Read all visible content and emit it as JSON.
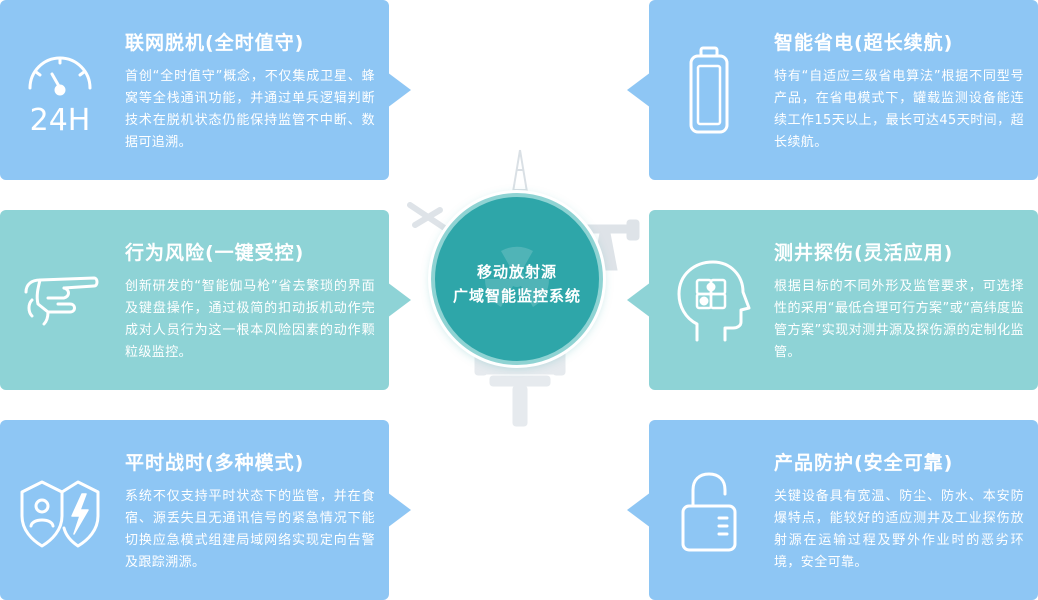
{
  "center": {
    "line1": "移动放射源",
    "line2": "广域智能监控系统"
  },
  "features": [
    {
      "title": "联网脱机(全时值守)",
      "description": "首创“全时值守”概念，不仅集成卫星、蜂窝等全栈通讯功能，并通过单兵逻辑判断技术在脱机状态仍能保持监管不中断、数据可追溯。",
      "icon": "gauge-24h-icon",
      "icon_text": "24H"
    },
    {
      "title": "智能省电(超长续航)",
      "description": "特有“自适应三级省电算法”根据不同型号产品，在省电模式下，罐载监测设备能连续工作15天以上，最长可达45天时间，超长续航。",
      "icon": "battery-icon"
    },
    {
      "title": "行为风险(一键受控)",
      "description": "创新研发的“智能伽马枪”省去繁琐的界面及键盘操作，通过极简的扣动扳机动作完成对人员行为这一根本风险因素的动作颗粒级监控。",
      "icon": "hand-pointing-icon"
    },
    {
      "title": "测井探伤(灵活应用)",
      "description": "根据目标的不同外形及监管要求，可选择性的采用“最低合理可行方案”或“高纬度监管方案”实现对测井源及探伤源的定制化监管。",
      "icon": "head-puzzle-icon"
    },
    {
      "title": "平时战时(多种模式)",
      "description": "系统不仅支持平时状态下的监管，并在食宿、源丢失且无通讯信号的紧急情况下能切换应急模式组建局域网络实现定向告警及跟踪溯源。",
      "icon": "shield-user-lightning-icon"
    },
    {
      "title": "产品防护(安全可靠)",
      "description": "关键设备具有宽温、防尘、防水、本安防爆特点，能较好的适应测井及工业探伤放射源在运输过程及野外作业时的恶劣环境，安全可靠。",
      "icon": "padlock-icon"
    }
  ],
  "colors": {
    "card_blue": "#8ec6f4",
    "card_teal": "#8ed3d6",
    "center": "#2ea6a9"
  }
}
